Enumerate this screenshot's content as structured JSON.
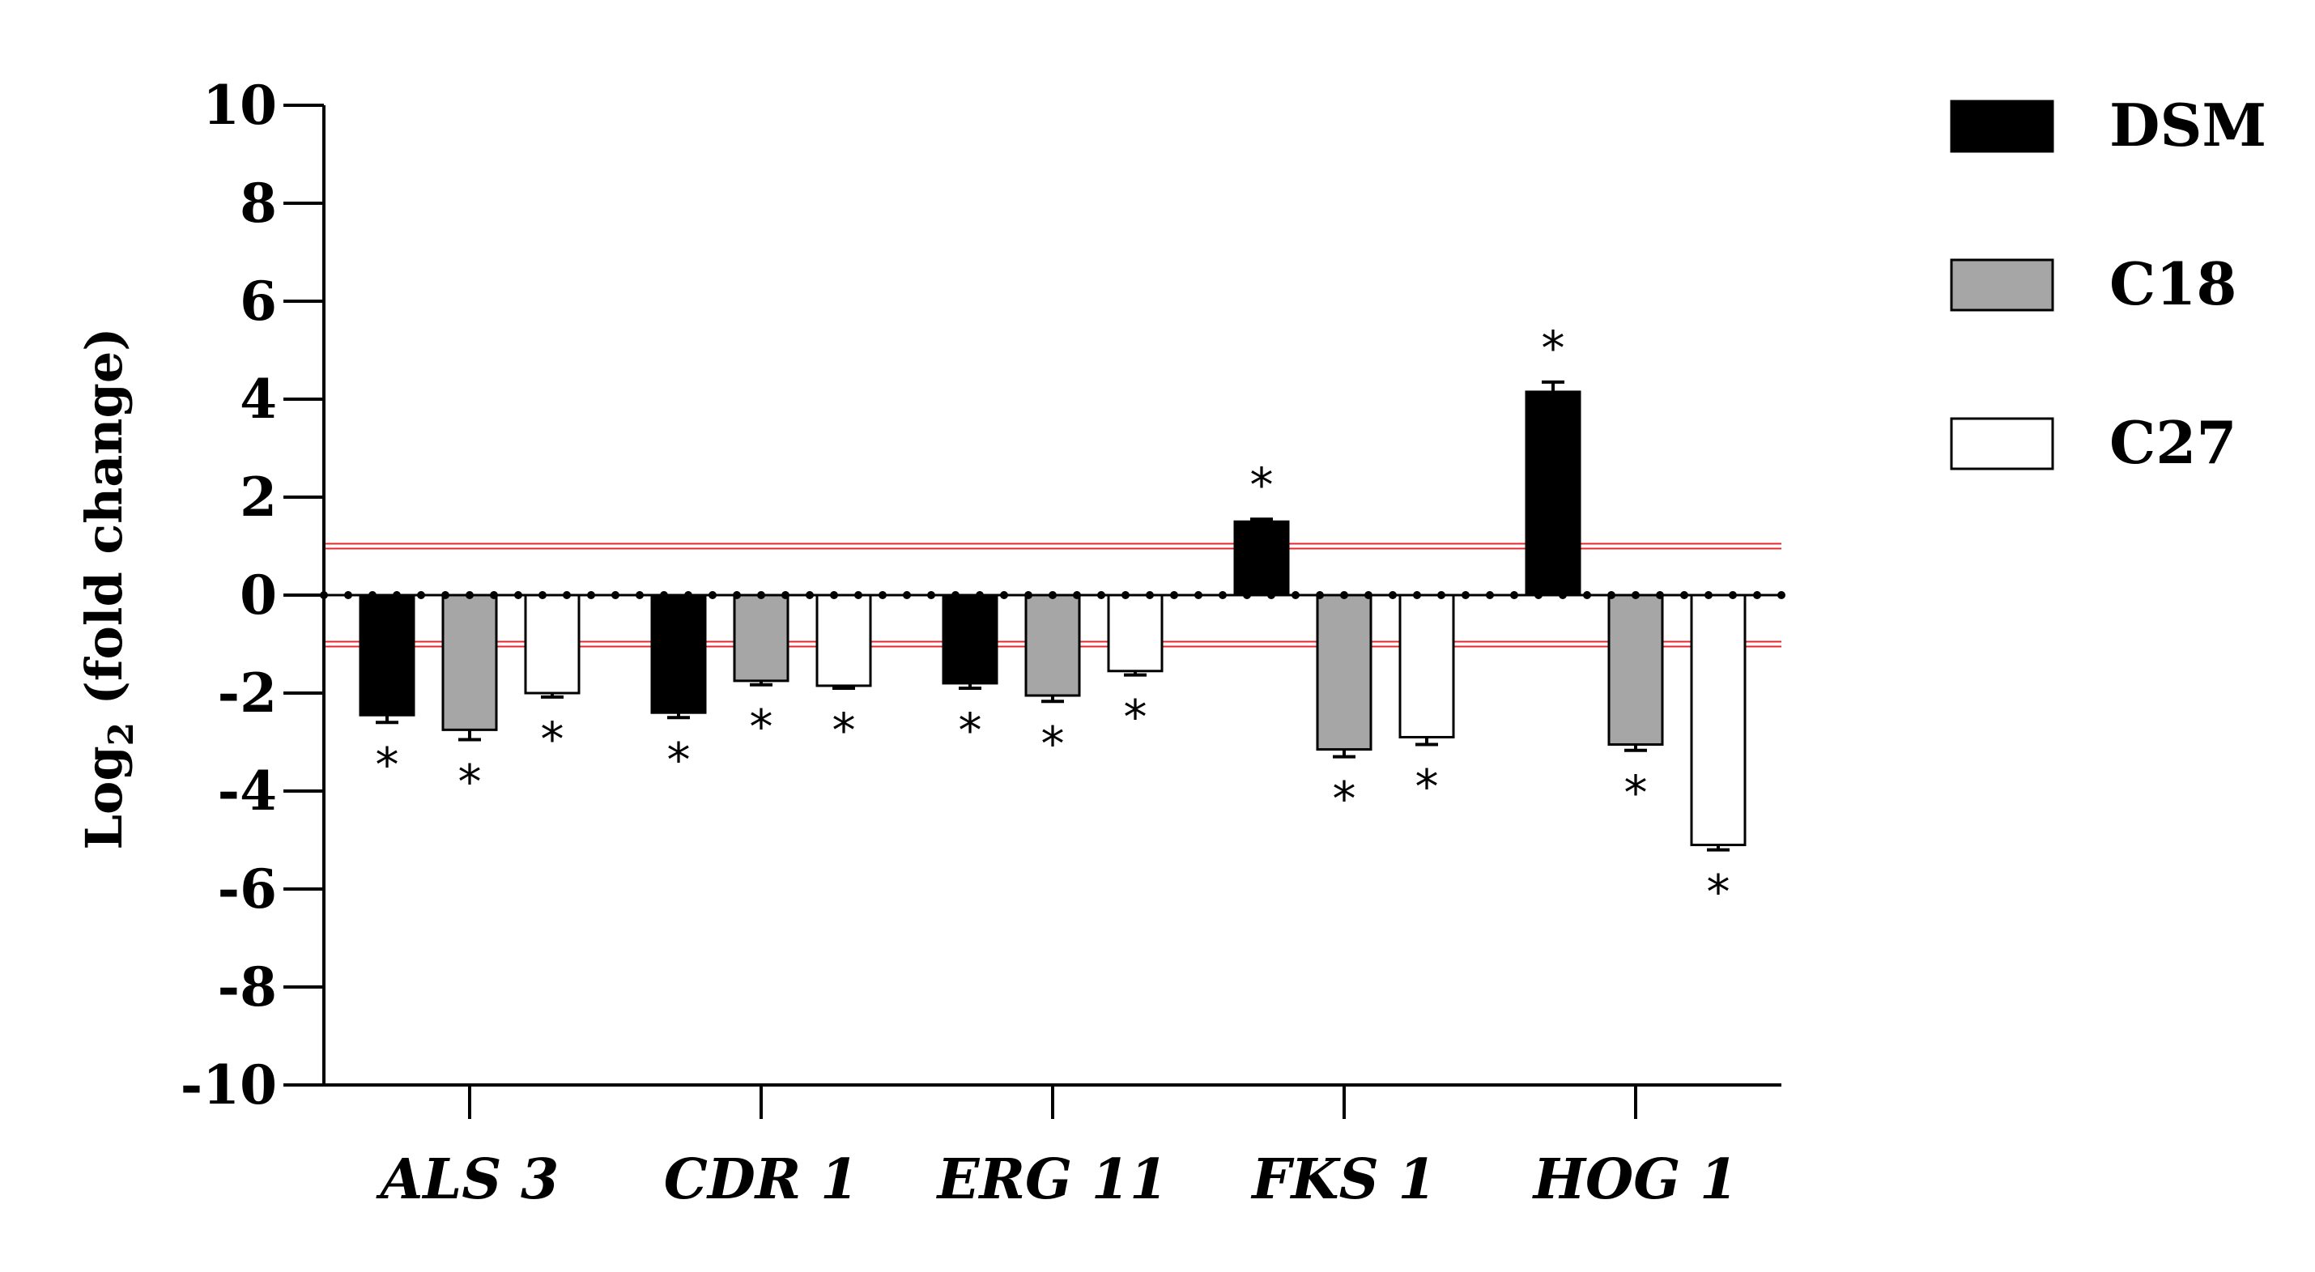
{
  "chart_data": {
    "type": "bar",
    "title": "",
    "xlabel": "",
    "ylabel_main": "Log",
    "ylabel_sub": "2",
    "ylabel_rest": " (fold change)",
    "ylim": [
      -10,
      10
    ],
    "yticks": [
      "10",
      "8",
      "6",
      "4",
      "2",
      "0",
      "-2",
      "-4",
      "-6",
      "-8",
      "-10"
    ],
    "ytick_values": [
      10,
      8,
      6,
      4,
      2,
      0,
      -2,
      -4,
      -6,
      -8,
      -10
    ],
    "categories": [
      "ALS 3",
      "CDR 1",
      "ERG 11",
      "FKS 1",
      "HOG 1"
    ],
    "threshold_lines": [
      1,
      -1
    ],
    "significance_marker": "*",
    "series": [
      {
        "name": "DSM",
        "color": "#000000",
        "values": [
          -2.45,
          -2.4,
          -1.8,
          1.5,
          4.15
        ],
        "errors": [
          0.15,
          0.1,
          0.1,
          0.05,
          0.2
        ],
        "significant": [
          true,
          true,
          true,
          true,
          true
        ]
      },
      {
        "name": "C18",
        "color": "#a6a6a6",
        "values": [
          -2.75,
          -1.75,
          -2.05,
          -3.15,
          -3.05
        ],
        "errors": [
          0.2,
          0.08,
          0.12,
          0.15,
          0.12
        ],
        "significant": [
          true,
          true,
          true,
          true,
          true
        ]
      },
      {
        "name": "C27",
        "color": "#ffffff",
        "values": [
          -2.0,
          -1.85,
          -1.55,
          -2.9,
          -5.1
        ],
        "errors": [
          0.08,
          0.05,
          0.08,
          0.15,
          0.1
        ],
        "significant": [
          true,
          true,
          true,
          true,
          true
        ]
      }
    ],
    "legend_position": "top-right"
  }
}
